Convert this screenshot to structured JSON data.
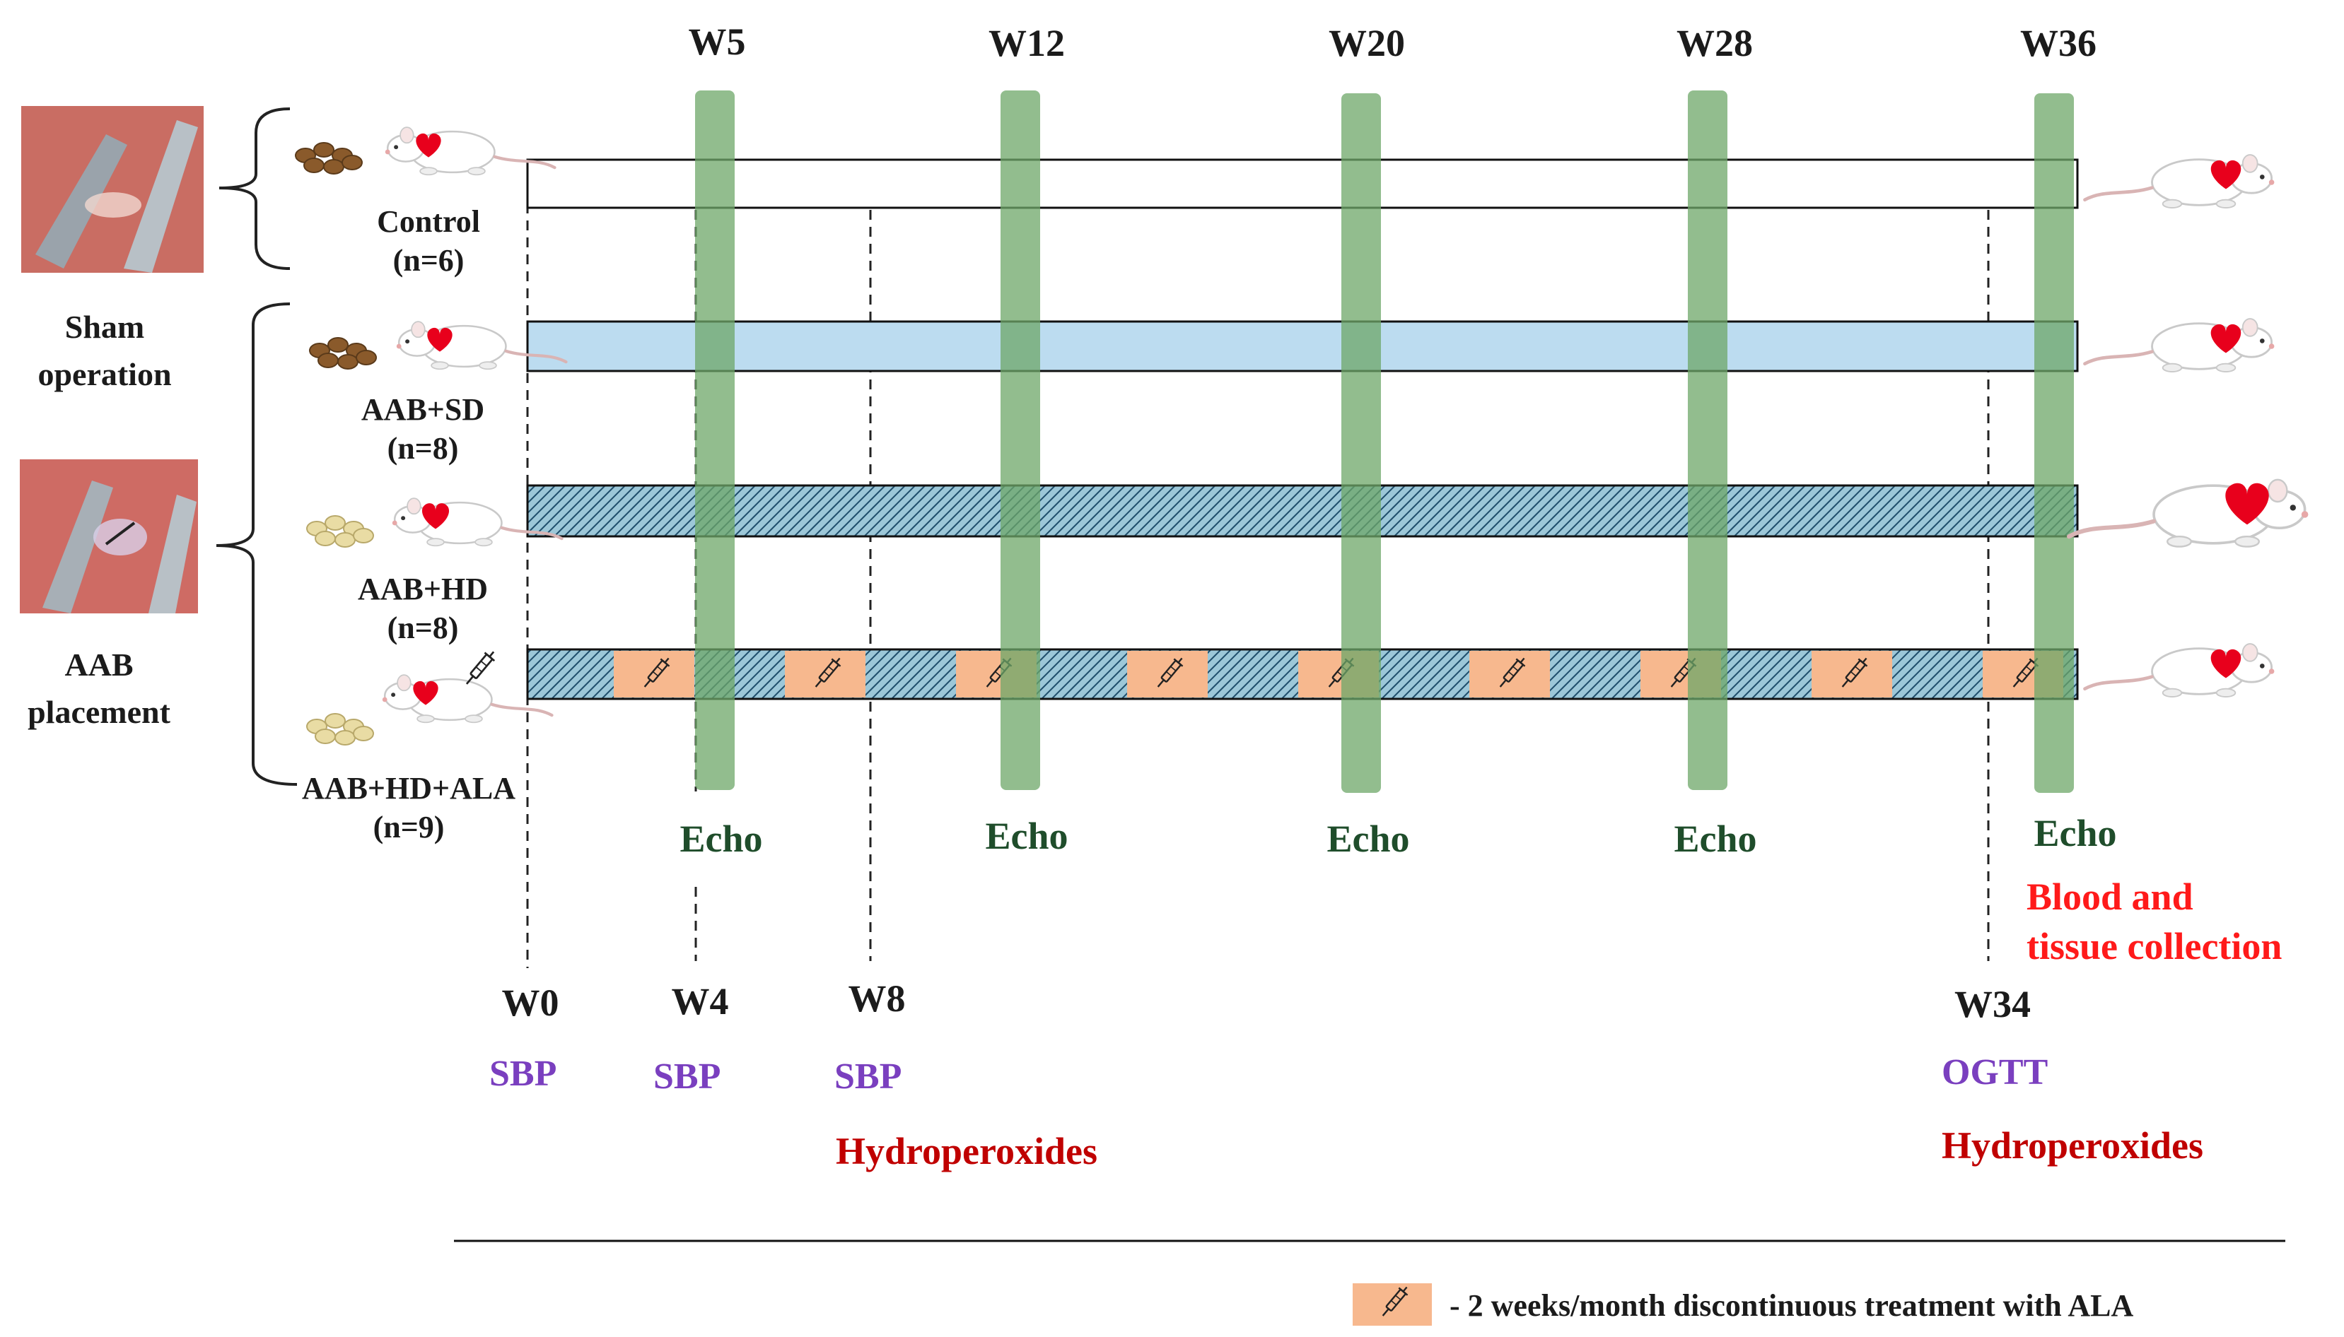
{
  "timepoints_top": [
    {
      "label": "W5",
      "echo": "Echo"
    },
    {
      "label": "W12",
      "echo": "Echo"
    },
    {
      "label": "W20",
      "echo": "Echo"
    },
    {
      "label": "W28",
      "echo": "Echo"
    },
    {
      "label": "W36",
      "echo": "Echo"
    }
  ],
  "timepoints_bottom": [
    {
      "label": "W0",
      "measures": [
        "SBP"
      ]
    },
    {
      "label": "W4",
      "measures": [
        "SBP"
      ]
    },
    {
      "label": "W8",
      "measures": [
        "SBP",
        "Hydroperoxides"
      ]
    },
    {
      "label": "W34",
      "measures": [
        "OGTT",
        "Hydroperoxides"
      ]
    }
  ],
  "final_collection": "Blood and tissue collection",
  "final_collection_lines": [
    "Blood and",
    "tissue collection"
  ],
  "surgery": {
    "sham": {
      "line1": "Sham",
      "line2": "operation"
    },
    "aab": {
      "line1": "AAB",
      "line2": "placement"
    }
  },
  "groups": [
    {
      "name": "Control",
      "n": "(n=6)",
      "diet": "standard",
      "bar": "white"
    },
    {
      "name": "AAB+SD",
      "n": "(n=8)",
      "diet": "standard",
      "bar": "light-blue"
    },
    {
      "name": "AAB+HD",
      "n": "(n=8)",
      "diet": "high",
      "bar": "hatched"
    },
    {
      "name": "AAB+HD+ALA",
      "n": "(n=9)",
      "diet": "high",
      "bar": "hatched-with-ALA"
    }
  ],
  "legend": {
    "text": "- 2 weeks/month discontinuous treatment with ALA",
    "icon": "syringe-icon"
  },
  "colors": {
    "echo_band": "#8fbc8b",
    "sd_bar": "#bcdcf0",
    "hd_hatch": "#7fb4c9",
    "ala_block": "#f7b88e",
    "sbp_text": "#7a3fbf",
    "hydroperoxide_text": "#c00000",
    "collection_text": "#ff1a1a"
  }
}
